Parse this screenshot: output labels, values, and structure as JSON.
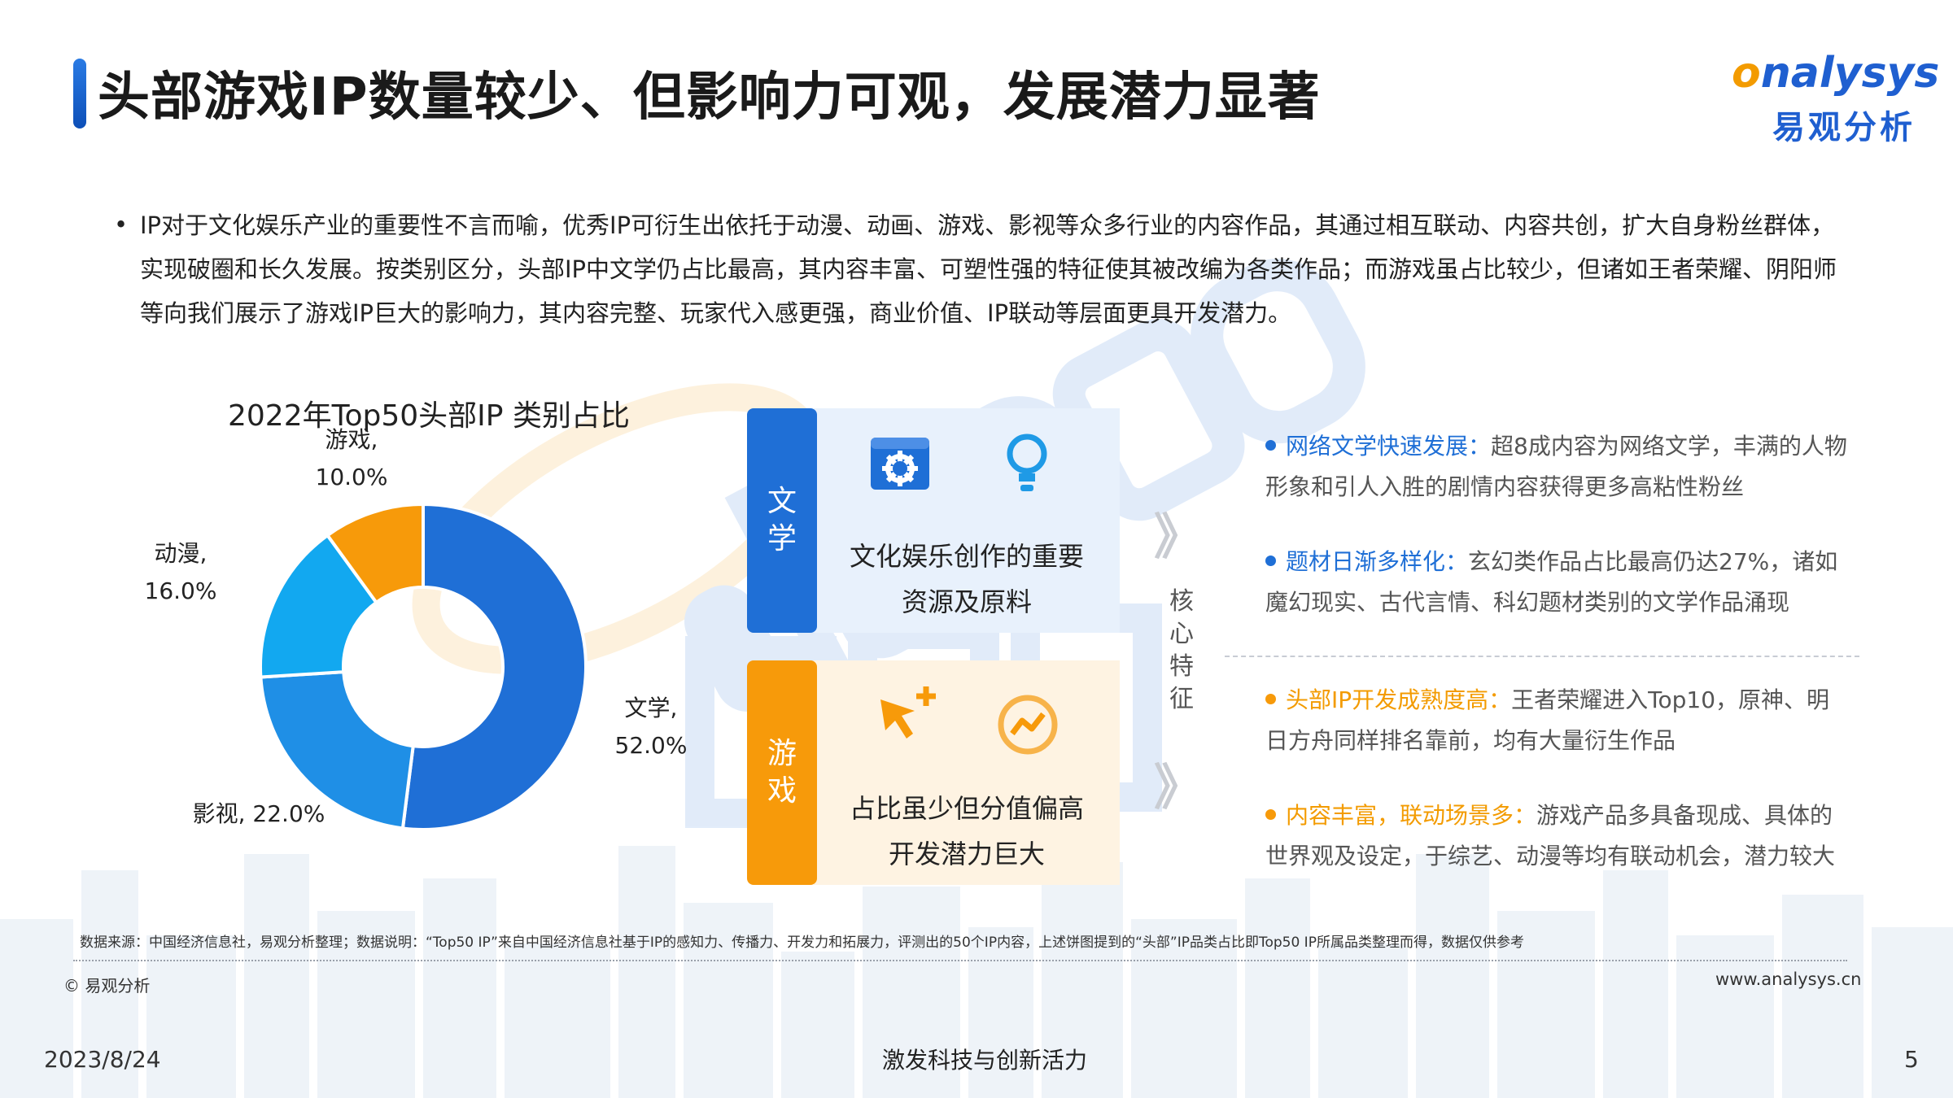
{
  "header": {
    "title": "头部游戏IP数量较少、但影响力可观，发展潜力显著",
    "logo_en_o": "o",
    "logo_en_rest": "nalysys",
    "logo_cn": "易观分析"
  },
  "intro": {
    "bullet": "•",
    "text": "IP对于文化娱乐产业的重要性不言而喻，优秀IP可衍生出依托于动漫、动画、游戏、影视等众多行业的内容作品，其通过相互联动、内容共创，扩大自身粉丝群体，实现破圈和长久发展。按类别区分，头部IP中文学仍占比最高，其内容丰富、可塑性强的特征使其被改编为各类作品；而游戏虽占比较少，但诸如王者荣耀、阴阳师等向我们展示了游戏IP巨大的影响力，其内容完整、玩家代入感更强，商业价值、IP联动等层面更具开发潜力。"
  },
  "chart_data": {
    "type": "pie",
    "variant": "donut",
    "title": "2022年Top50头部IP 类别占比",
    "categories": [
      "文学",
      "影视",
      "动漫",
      "游戏"
    ],
    "values": [
      52.0,
      22.0,
      16.0,
      10.0
    ],
    "labels": [
      "文学,\n52.0%",
      "影视, 22.0%",
      "动漫,\n16.0%",
      "游戏,\n10.0%"
    ],
    "colors": [
      "#1f6fd6",
      "#1f8fe6",
      "#12a8f0",
      "#f79a0a"
    ]
  },
  "panels": {
    "literature": {
      "tag": [
        "文",
        "学"
      ],
      "line1": "文化娱乐创作的重要",
      "line2": "资源及原料",
      "icons": [
        "gear-box-icon",
        "lightbulb-icon"
      ],
      "color": "#1f6fd6"
    },
    "game": {
      "tag": [
        "游",
        "戏"
      ],
      "line1": "占比虽少但分值偏高",
      "line2": "开发潜力巨大",
      "icons": [
        "cursor-plus-icon",
        "trend-circle-icon"
      ],
      "color": "#f79a0a"
    },
    "core_label": [
      "核",
      "心",
      "特",
      "征"
    ],
    "chevron": "》"
  },
  "features": [
    {
      "key": "网络文学快速发展",
      "sep": "：",
      "text": "超8成内容为网络文学，丰满的人物形象和引人入胜的剧情内容获得更多高粘性粉丝",
      "color": "blue"
    },
    {
      "key": "题材日渐多样化",
      "sep": "：",
      "text": "玄幻类作品占比最高仍达27%，诸如魔幻现实、古代言情、科幻题材类别的文学作品涌现",
      "color": "blue"
    },
    {
      "key": "头部IP开发成熟度高",
      "sep": "：",
      "text": "王者荣耀进入Top10，原神、明日方舟同样排名靠前，均有大量衍生作品",
      "color": "orange"
    },
    {
      "key": "内容丰富，联动场景多",
      "sep": "：",
      "text": "游戏产品多具备现成、具体的世界观及设定，于综艺、动漫等均有联动机会，潜力较大",
      "color": "orange"
    }
  ],
  "footer": {
    "source": "数据来源：中国经济信息社，易观分析整理；数据说明：“Top50 IP”来自中国经济信息社基于IP的感知力、传播力、开发力和拓展力，评测出的50个IP内容，上述饼图提到的“头部”IP品类占比即Top50 IP所属品类整理而得，数据仅供参考",
    "copyright": "© 易观分析",
    "website": "www.analysys.cn",
    "date": "2023/8/24",
    "slogan": "激发科技与创新活力",
    "page": "5"
  }
}
